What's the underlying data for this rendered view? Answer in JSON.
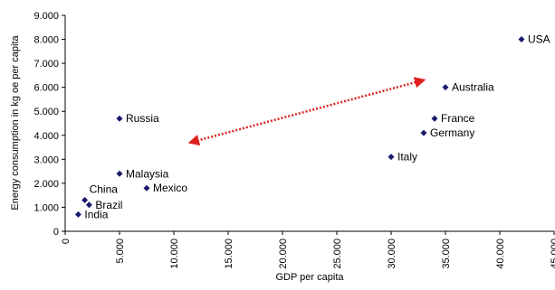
{
  "chart_data": {
    "type": "scatter",
    "xlabel": "GDP per capita",
    "ylabel": "Energy consumption in kg oe per capita",
    "xlim": [
      0,
      45000
    ],
    "ylim": [
      0,
      9000
    ],
    "x_ticks": [
      "0",
      "5.000",
      "10.000",
      "15.000",
      "20.000",
      "25.000",
      "30.000",
      "35.000",
      "40.000",
      "45.000"
    ],
    "y_ticks": [
      "0",
      "1.000",
      "2.000",
      "3.000",
      "4.000",
      "5.000",
      "6.000",
      "7.000",
      "8.000",
      "9.000"
    ],
    "grid": false,
    "marker_color": "#1a1a6e",
    "arrow_color": "#e02020",
    "points": [
      {
        "label": "India",
        "x": 1200,
        "y": 700
      },
      {
        "label": "Brazil",
        "x": 2200,
        "y": 1100
      },
      {
        "label": "China",
        "x": 1800,
        "y": 1300
      },
      {
        "label": "Malaysia",
        "x": 5000,
        "y": 2400
      },
      {
        "label": "Mexico",
        "x": 7500,
        "y": 1800
      },
      {
        "label": "Russia",
        "x": 5000,
        "y": 4700
      },
      {
        "label": "Italy",
        "x": 30000,
        "y": 3100
      },
      {
        "label": "Germany",
        "x": 33000,
        "y": 4100
      },
      {
        "label": "France",
        "x": 34000,
        "y": 4700
      },
      {
        "label": "Australia",
        "x": 35000,
        "y": 6000
      },
      {
        "label": "USA",
        "x": 42000,
        "y": 8000
      }
    ],
    "arrow": {
      "from": {
        "x": 11500,
        "y": 3700
      },
      "to": {
        "x": 33000,
        "y": 6300
      },
      "style": "dotted",
      "double_headed": true
    }
  }
}
